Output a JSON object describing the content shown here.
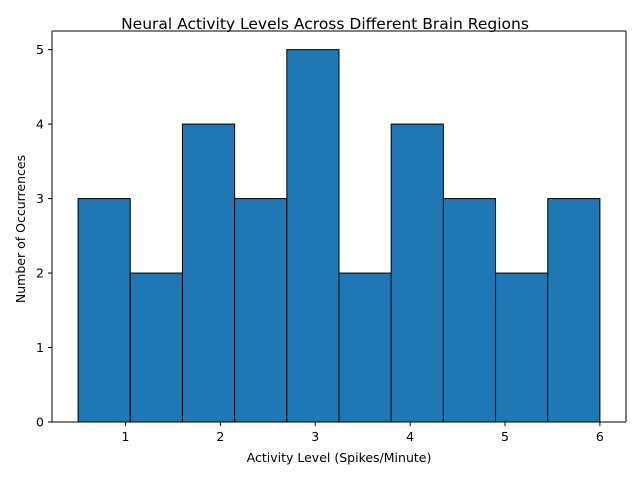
{
  "chart_data": {
    "type": "bar",
    "title": "Neural Activity Levels Across Different Brain Regions",
    "xlabel": "Activity Level (Spikes/Minute)",
    "ylabel": "Number of Occurrences",
    "bins": [
      {
        "start": 0.5,
        "end": 1.05,
        "count": 3
      },
      {
        "start": 1.05,
        "end": 1.6,
        "count": 2
      },
      {
        "start": 1.6,
        "end": 2.15,
        "count": 4
      },
      {
        "start": 2.15,
        "end": 2.7,
        "count": 3
      },
      {
        "start": 2.7,
        "end": 3.25,
        "count": 5
      },
      {
        "start": 3.25,
        "end": 3.8,
        "count": 2
      },
      {
        "start": 3.8,
        "end": 4.35,
        "count": 4
      },
      {
        "start": 4.35,
        "end": 4.9,
        "count": 3
      },
      {
        "start": 4.9,
        "end": 5.45,
        "count": 2
      },
      {
        "start": 5.45,
        "end": 6.0,
        "count": 3
      }
    ],
    "xlim": [
      0.225,
      6.275
    ],
    "ylim": [
      0,
      5.25
    ],
    "xticks": [
      1,
      2,
      3,
      4,
      5,
      6
    ],
    "yticks": [
      0,
      1,
      2,
      3,
      4,
      5
    ],
    "grid": false,
    "colors": {
      "bar_fill": "#1f77b4",
      "bar_edge": "#000000"
    }
  }
}
